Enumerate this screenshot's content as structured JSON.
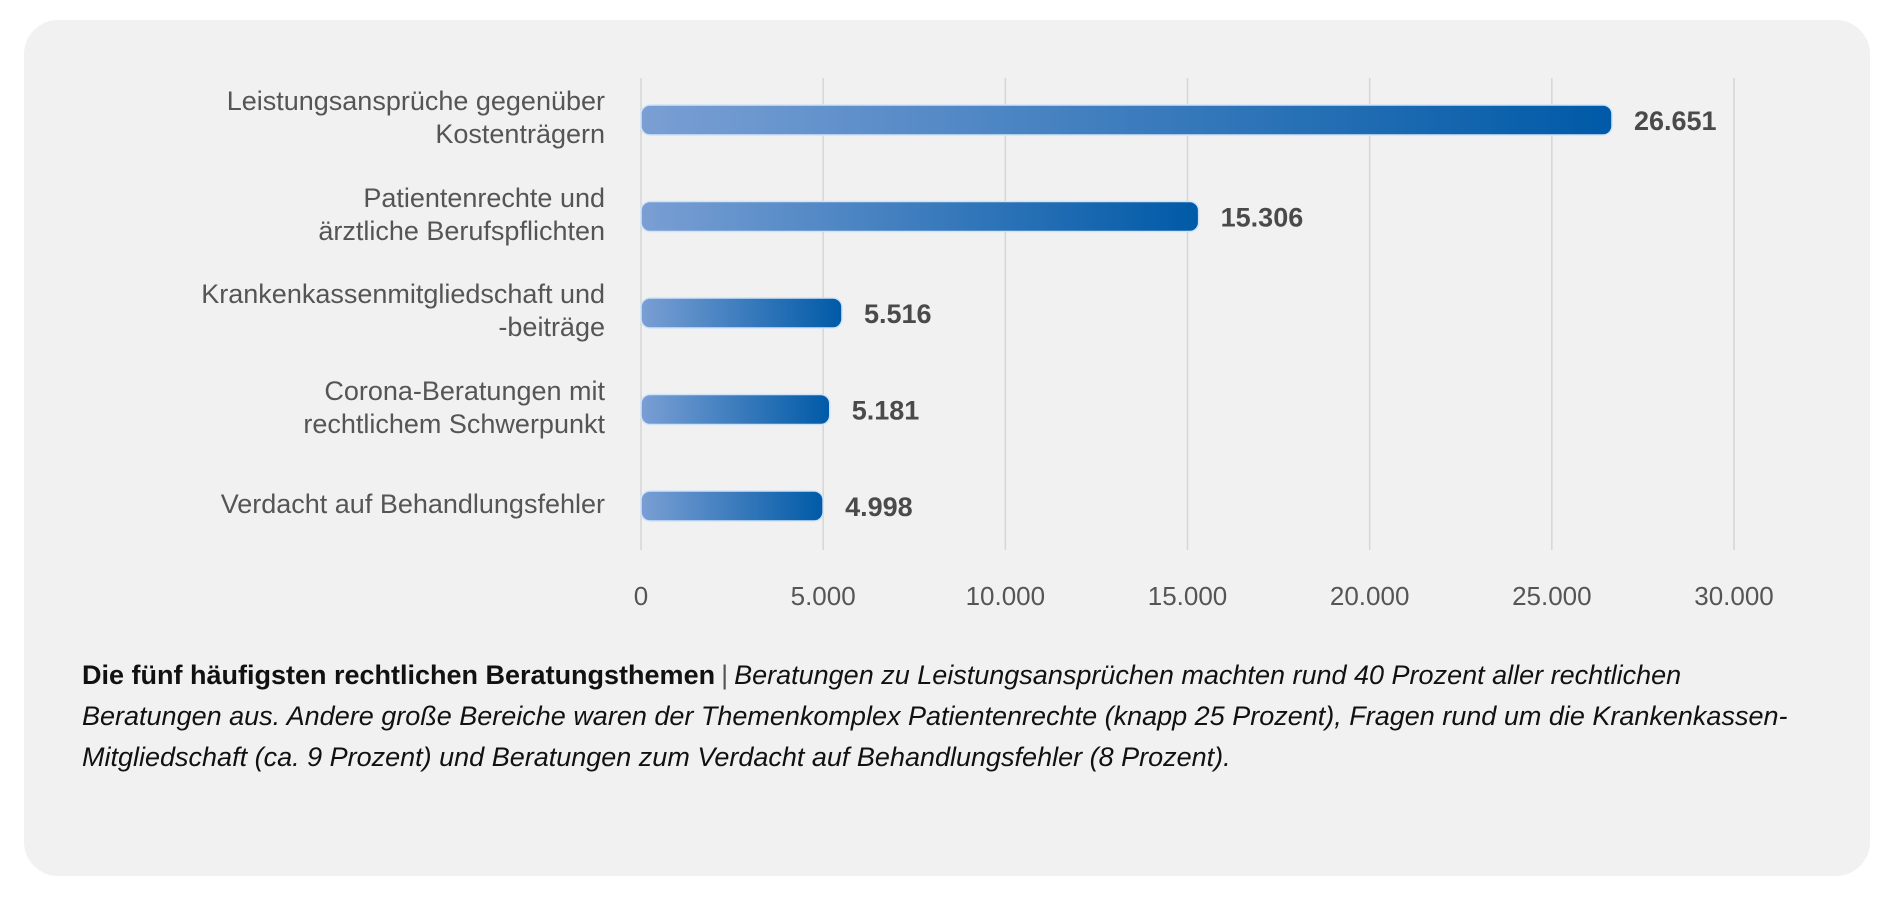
{
  "chart_data": {
    "type": "bar",
    "orientation": "horizontal",
    "categories": [
      "Leistungsansprüche gegenüber\nKostenträgern",
      "Patientenrechte und\närztliche Berufspflichten",
      "Krankenkassenmitgliedschaft und\n-beiträge",
      "Corona-Beratungen mit\nrechtlichem Schwerpunkt",
      "Verdacht auf Behandlungsfehler"
    ],
    "values": [
      26651,
      15306,
      5516,
      5181,
      4998
    ],
    "value_labels": [
      "26.651",
      "15.306",
      "5.516",
      "5.181",
      "4.998"
    ],
    "title": "",
    "xlabel": "",
    "ylabel": "",
    "xlim": [
      0,
      30000
    ],
    "x_ticks": [
      0,
      5000,
      10000,
      15000,
      20000,
      25000,
      30000
    ],
    "x_tick_labels": [
      "0",
      "5.000",
      "10.000",
      "15.000",
      "20.000",
      "25.000",
      "30.000"
    ],
    "grid": "vertical",
    "legend": "none",
    "colors": {
      "bar_start": "#7a9fd4",
      "bar_end": "#005aa7",
      "grid": "#d6d6d6",
      "label": "#555555",
      "value": "#4a4a4a"
    }
  },
  "caption": {
    "title": "Die fünf häufigsten rechtlichen Beratungsthemen",
    "separator": "|",
    "body": "Beratungen zu Leistungsansprüchen machten rund 40 Prozent aller rechtlichen Beratungen aus. Andere große Bereiche waren der Themenkomplex Patientenrechte (knapp 25 Prozent), Fragen rund um die Krankenkassen-Mitgliedschaft (ca. 9 Prozent) und Beratungen zum Verdacht auf Behandlungsfehler (8 Prozent)."
  }
}
